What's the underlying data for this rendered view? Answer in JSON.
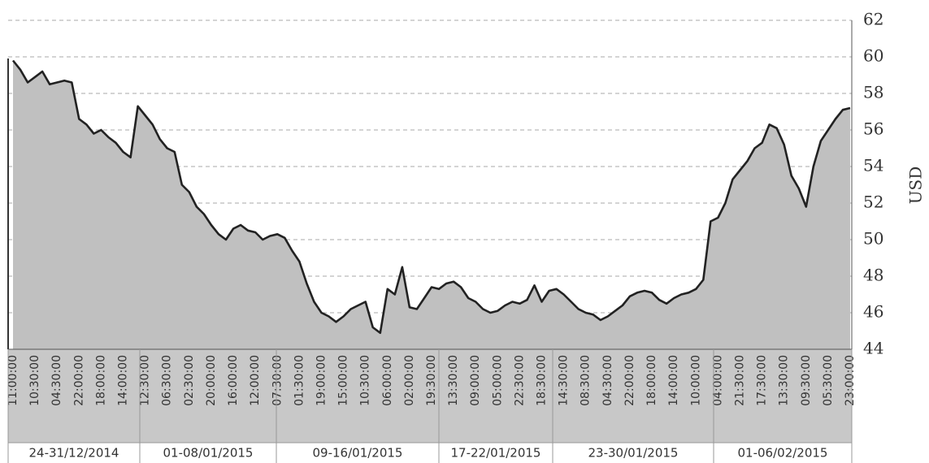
{
  "chart_data": {
    "type": "area",
    "y_label": "USD",
    "ylim": [
      44,
      62
    ],
    "yticks": [
      44,
      46,
      48,
      50,
      52,
      54,
      56,
      58,
      60,
      62
    ],
    "grid": true,
    "fill_color": "#c0c0c0",
    "line_color": "#222222",
    "categories": [
      "11:00:00",
      null,
      null,
      "10:30:00",
      null,
      null,
      "04:30:00",
      null,
      null,
      "22:00:00",
      null,
      null,
      "18:00:00",
      null,
      null,
      "14:00:00",
      null,
      null,
      "12:30:00",
      null,
      null,
      "06:30:00",
      null,
      null,
      "02:30:00",
      null,
      null,
      "20:00:00",
      null,
      null,
      "16:00:00",
      null,
      null,
      "12:00:00",
      null,
      null,
      "07:30:00",
      null,
      null,
      "01:30:00",
      null,
      null,
      "19:00:00",
      null,
      null,
      "15:00:00",
      null,
      null,
      "10:30:00",
      null,
      null,
      "06:00:00",
      null,
      null,
      "02:00:00",
      null,
      null,
      "19:30:00",
      null,
      null,
      "13:30:00",
      null,
      null,
      "09:00:00",
      null,
      null,
      "05:00:00",
      null,
      null,
      "22:30:00",
      null,
      null,
      "18:30:00",
      null,
      null,
      "14:30:00",
      null,
      null,
      "08:30:00",
      null,
      null,
      "04:30:00",
      null,
      null,
      "22:00:00",
      null,
      null,
      "18:00:00",
      null,
      null,
      "14:00:00",
      null,
      null,
      "10:00:00",
      null,
      null,
      "04:00:00",
      null,
      null,
      "21:30:00",
      null,
      null,
      "17:30:00",
      null,
      null,
      "13:30:00",
      null,
      null,
      "09:30:00",
      null,
      null,
      "05:30:00",
      null,
      null,
      "23:00:00"
    ],
    "values": [
      59.8,
      59.3,
      58.6,
      58.9,
      59.2,
      58.5,
      58.6,
      58.7,
      58.6,
      56.6,
      56.3,
      55.8,
      56,
      55.6,
      55.3,
      54.8,
      54.5,
      57.3,
      56.8,
      56.3,
      55.5,
      55,
      54.8,
      53,
      52.6,
      51.8,
      51.4,
      50.8,
      50.3,
      50,
      50.6,
      50.8,
      50.5,
      50.4,
      50,
      50.2,
      50.3,
      50.1,
      49.4,
      48.8,
      47.6,
      46.6,
      46,
      45.8,
      45.5,
      45.8,
      46.2,
      46.4,
      46.6,
      45.2,
      44.9,
      47.3,
      47,
      48.5,
      46.3,
      46.2,
      46.8,
      47.4,
      47.3,
      47.6,
      47.7,
      47.4,
      46.8,
      46.6,
      46.2,
      46,
      46.1,
      46.4,
      46.6,
      46.5,
      46.7,
      47.5,
      46.6,
      47.2,
      47.3,
      47,
      46.6,
      46.2,
      46,
      45.9,
      45.6,
      45.8,
      46.1,
      46.4,
      46.9,
      47.1,
      47.2,
      47.1,
      46.7,
      46.5,
      46.8,
      47,
      47.1,
      47.3,
      47.8,
      51,
      51.2,
      52,
      53.3,
      53.8,
      54.3,
      55,
      55.3,
      56.3,
      56.1,
      55.2,
      53.5,
      52.8,
      51.8,
      54,
      55.4,
      56,
      56.6,
      57.1,
      57.2
    ],
    "groups": [
      "24-31/12/2014",
      "01-08/01/2015",
      "09-16/01/2015",
      "17-22/01/2015",
      "23-30/01/2015",
      "01-06/02/2015"
    ]
  }
}
